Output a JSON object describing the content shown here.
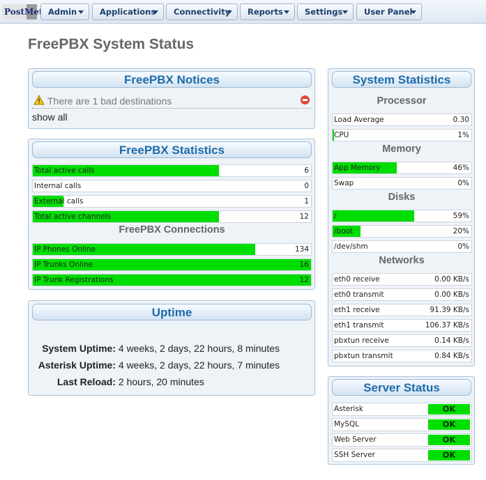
{
  "logo": "PostMet",
  "nav": {
    "admin": "Admin",
    "applications": "Applications",
    "connectivity": "Connectivity",
    "reports": "Reports",
    "settings": "Settings",
    "user_panel": "User Panel"
  },
  "page_title": "FreePBX System Status",
  "notices": {
    "title": "FreePBX Notices",
    "items": [
      "There are 1 bad destinations"
    ],
    "show_all": "show all"
  },
  "statistics": {
    "title": "FreePBX Statistics",
    "rows": [
      {
        "label": "Total active calls",
        "value": "6",
        "fill": 0.67
      },
      {
        "label": "Internal calls",
        "value": "0",
        "fill": 0
      },
      {
        "label": "External calls",
        "value": "1",
        "fill": 0.11
      },
      {
        "label": "Total active channels",
        "value": "12",
        "fill": 0.67
      }
    ],
    "connections_title": "FreePBX Connections",
    "connections": [
      {
        "label": "IP Phones Online",
        "value": "134",
        "fill": 0.8
      },
      {
        "label": "IP Trunks Online",
        "value": "16",
        "fill": 1.0
      },
      {
        "label": "IP Trunk Registrations",
        "value": "12",
        "fill": 1.0
      }
    ]
  },
  "uptime": {
    "title": "Uptime",
    "system_label": "System Uptime:",
    "system_value": "4 weeks, 2 days, 22 hours, 8 minutes",
    "asterisk_label": "Asterisk Uptime:",
    "asterisk_value": "4 weeks, 2 days, 22 hours, 7 minutes",
    "reload_label": "Last Reload:",
    "reload_value": "2 hours, 20 minutes"
  },
  "system_stats": {
    "title": "System Statistics",
    "processor_title": "Processor",
    "processor": [
      {
        "label": "Load Average",
        "value": "0.30",
        "fill": 0
      },
      {
        "label": "CPU",
        "value": "1%",
        "fill": 0.01
      }
    ],
    "memory_title": "Memory",
    "memory": [
      {
        "label": "App Memory",
        "value": "46%",
        "fill": 0.46
      },
      {
        "label": "Swap",
        "value": "0%",
        "fill": 0
      }
    ],
    "disks_title": "Disks",
    "disks": [
      {
        "label": "/",
        "value": "59%",
        "fill": 0.59
      },
      {
        "label": "/boot",
        "value": "20%",
        "fill": 0.2
      },
      {
        "label": "/dev/shm",
        "value": "0%",
        "fill": 0
      }
    ],
    "networks_title": "Networks",
    "networks": [
      {
        "label": "eth0 receive",
        "value": "0.00 KB/s"
      },
      {
        "label": "eth0 transmit",
        "value": "0.00 KB/s"
      },
      {
        "label": "eth1 receive",
        "value": "91.39 KB/s"
      },
      {
        "label": "eth1 transmit",
        "value": "106.37 KB/s"
      },
      {
        "label": "pbxtun receive",
        "value": "0.14 KB/s"
      },
      {
        "label": "pbxtun transmit",
        "value": "0.84 KB/s"
      }
    ]
  },
  "server_status": {
    "title": "Server Status",
    "rows": [
      {
        "label": "Asterisk",
        "status": "OK"
      },
      {
        "label": "MySQL",
        "status": "OK"
      },
      {
        "label": "Web Server",
        "status": "OK"
      },
      {
        "label": "SSH Server",
        "status": "OK"
      }
    ]
  },
  "colors": {
    "fill": "#00dd00",
    "header_text": "#1f6ba8",
    "title_text": "#666666"
  },
  "icons": {
    "warning": "warning-icon",
    "delete": "delete-icon",
    "dropdown": "chevron-down-icon"
  }
}
